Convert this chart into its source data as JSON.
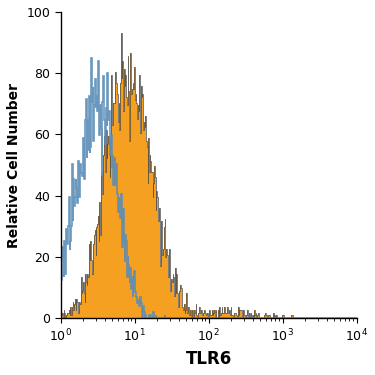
{
  "title": "",
  "xlabel": "TLR6",
  "ylabel": "Relative Cell Number",
  "xlim": [
    1,
    10000
  ],
  "ylim": [
    0,
    100
  ],
  "yticks": [
    0,
    20,
    40,
    60,
    80,
    100
  ],
  "orange_fill_color": "#F5A020",
  "orange_edge_color": "#4A4A4A",
  "blue_color": "#5B8DB8",
  "background_color": "#FFFFFF",
  "xlabel_fontsize": 12,
  "ylabel_fontsize": 10,
  "tick_fontsize": 9,
  "iso_peak_x": 3.5,
  "iso_peak_y": 85,
  "iso_scale": 0.28,
  "tlr6_peak_x": 9.0,
  "tlr6_peak_y": 93,
  "tlr6_scale": 0.38
}
